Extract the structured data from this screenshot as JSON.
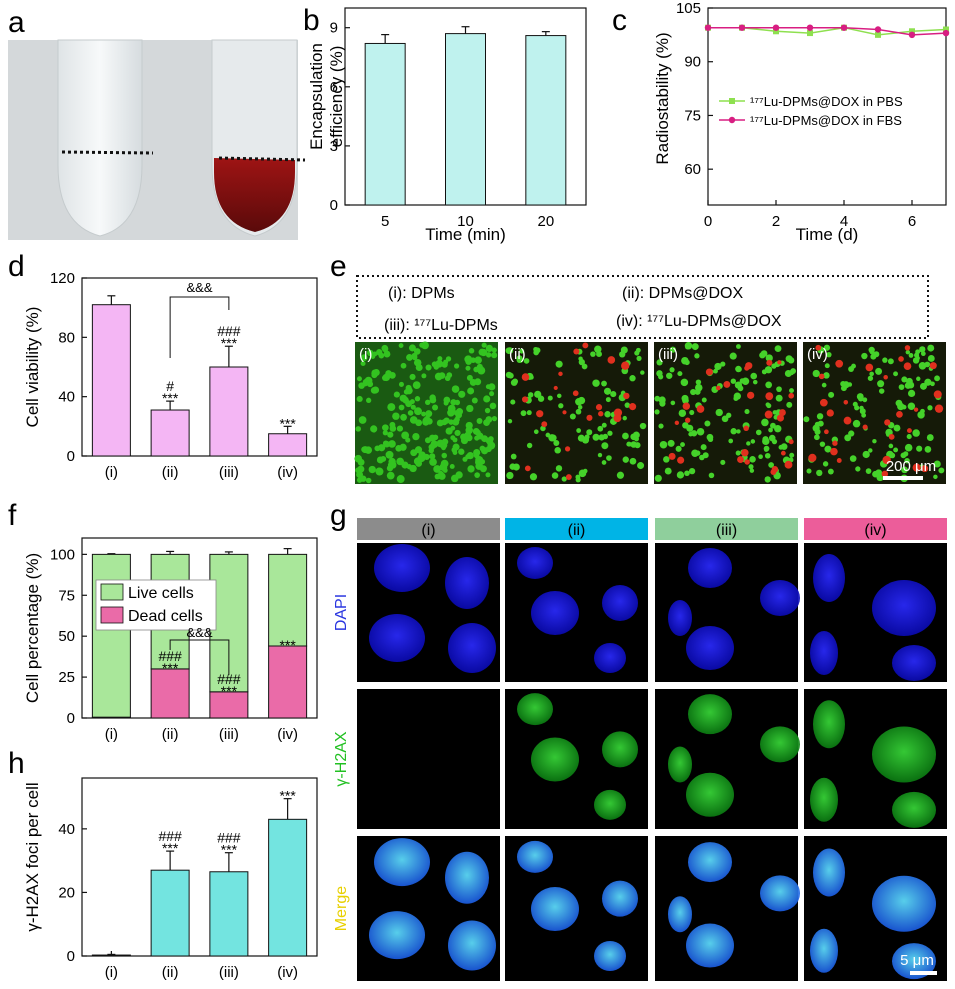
{
  "figure": {
    "panels": {
      "a": {
        "letter": "a"
      },
      "b": {
        "letter": "b"
      },
      "c": {
        "letter": "c"
      },
      "d": {
        "letter": "d"
      },
      "e": {
        "letter": "e"
      },
      "f": {
        "letter": "f"
      },
      "g": {
        "letter": "g"
      },
      "h": {
        "letter": "h"
      }
    },
    "panel_e": {
      "legend": [
        "(i): DPMs",
        "(ii): DPMs@DOX",
        "(iii): ¹⁷⁷Lu-DPMs",
        "(iv): ¹⁷⁷Lu-DPMs@DOX"
      ],
      "image_labels": [
        "(i)",
        "(ii)",
        "(iii)",
        "(iv)"
      ],
      "scale_bar": "200 μm"
    },
    "panel_g": {
      "columns": [
        "(i)",
        "(ii)",
        "(iii)",
        "(iv)"
      ],
      "column_colors": [
        "#8c8c8c",
        "#00b4e6",
        "#8fcf9c",
        "#ec5d9a"
      ],
      "row_labels": [
        "DAPI",
        "γ-H2AX",
        "Merge"
      ],
      "row_label_colors": [
        "#2a36e0",
        "#22c022",
        "#e8d000"
      ],
      "scale_bar": "5 μm"
    }
  },
  "chart_data": [
    {
      "id": "b",
      "type": "bar",
      "categories": [
        "5",
        "10",
        "20"
      ],
      "values": [
        8.2,
        8.7,
        8.6
      ],
      "errors": [
        0.45,
        0.35,
        0.2
      ],
      "xlabel": "Time (min)",
      "ylabel_lines": [
        "Encapsulation",
        "efficiency (%)"
      ],
      "ylim": [
        0,
        10
      ],
      "yticks": [
        0,
        3,
        6,
        9
      ],
      "bar_color": "#bff2ee"
    },
    {
      "id": "c",
      "type": "line",
      "xlabel": "Time (d)",
      "ylabel": "Radiostability (%)",
      "xlim": [
        0,
        7
      ],
      "ylim": [
        50,
        105
      ],
      "xticks": [
        0,
        2,
        4,
        6
      ],
      "yticks": [
        60,
        75,
        90,
        105
      ],
      "legend_position": "center-right",
      "series": [
        {
          "name": "¹⁷⁷Lu-DPMs@DOX in PBS",
          "color": "#8ee04f",
          "x": [
            0,
            1,
            2,
            3,
            4,
            5,
            6,
            7
          ],
          "y": [
            99.5,
            99.5,
            98.5,
            98.0,
            99.5,
            97.5,
            98.5,
            99.0
          ]
        },
        {
          "name": "¹⁷⁷Lu-DPMs@DOX in FBS",
          "color": "#d81e82",
          "x": [
            0,
            1,
            2,
            3,
            4,
            5,
            6,
            7
          ],
          "y": [
            99.5,
            99.5,
            99.5,
            99.5,
            99.5,
            99.0,
            97.5,
            98.0
          ]
        }
      ]
    },
    {
      "id": "d",
      "type": "bar",
      "categories": [
        "(i)",
        "(ii)",
        "(iii)",
        "(iv)"
      ],
      "values": [
        102,
        31,
        60,
        15
      ],
      "errors": [
        6,
        6,
        14,
        5
      ],
      "ylabel": "Cell viability (%)",
      "ylim": [
        0,
        120
      ],
      "yticks": [
        0,
        40,
        80,
        120
      ],
      "bar_color": "#f4b6f4",
      "annotations": [
        {
          "category": 1,
          "lines": [
            "#",
            "***"
          ]
        },
        {
          "category": 2,
          "lines": [
            "###",
            "***"
          ]
        },
        {
          "category": 3,
          "lines": [
            "***"
          ]
        }
      ],
      "bracket": {
        "from": 1,
        "to": 2,
        "label": "&&&"
      }
    },
    {
      "id": "f",
      "type": "bar",
      "stacked": true,
      "categories": [
        "(i)",
        "(ii)",
        "(iii)",
        "(iv)"
      ],
      "series": [
        {
          "name": "Dead cells",
          "values": [
            0.5,
            30,
            16,
            44
          ],
          "color": "#ea6ba8"
        },
        {
          "name": "Live cells",
          "values": [
            99.5,
            70,
            84,
            56
          ],
          "color": "#a9e79a"
        }
      ],
      "totals_error": [
        0.4,
        1.8,
        1.5,
        3.5
      ],
      "ylabel": "Cell percentage (%)",
      "ylim": [
        0,
        110
      ],
      "yticks": [
        0,
        25,
        50,
        75,
        100
      ],
      "legend_order": [
        "Live cells",
        "Dead cells"
      ],
      "annotations": [
        {
          "category": 1,
          "lines": [
            "###",
            "***"
          ]
        },
        {
          "category": 2,
          "lines": [
            "###",
            "***"
          ]
        },
        {
          "category": 3,
          "lines": [
            "***"
          ]
        }
      ],
      "bracket": {
        "from": 1,
        "to": 2,
        "label": "&&&"
      }
    },
    {
      "id": "h",
      "type": "bar",
      "categories": [
        "(i)",
        "(ii)",
        "(iii)",
        "(iv)"
      ],
      "values": [
        0.3,
        27,
        26.5,
        43
      ],
      "errors": [
        0.2,
        6,
        6,
        6.5
      ],
      "ylabel": "γ-H2AX foci per cell",
      "ylim": [
        0,
        56
      ],
      "yticks": [
        0,
        20,
        40
      ],
      "bar_color": "#73e4e0",
      "annotations": [
        {
          "category": 1,
          "lines": [
            "###",
            "***"
          ]
        },
        {
          "category": 2,
          "lines": [
            "###",
            "***"
          ]
        },
        {
          "category": 3,
          "lines": [
            "***"
          ]
        }
      ]
    }
  ]
}
